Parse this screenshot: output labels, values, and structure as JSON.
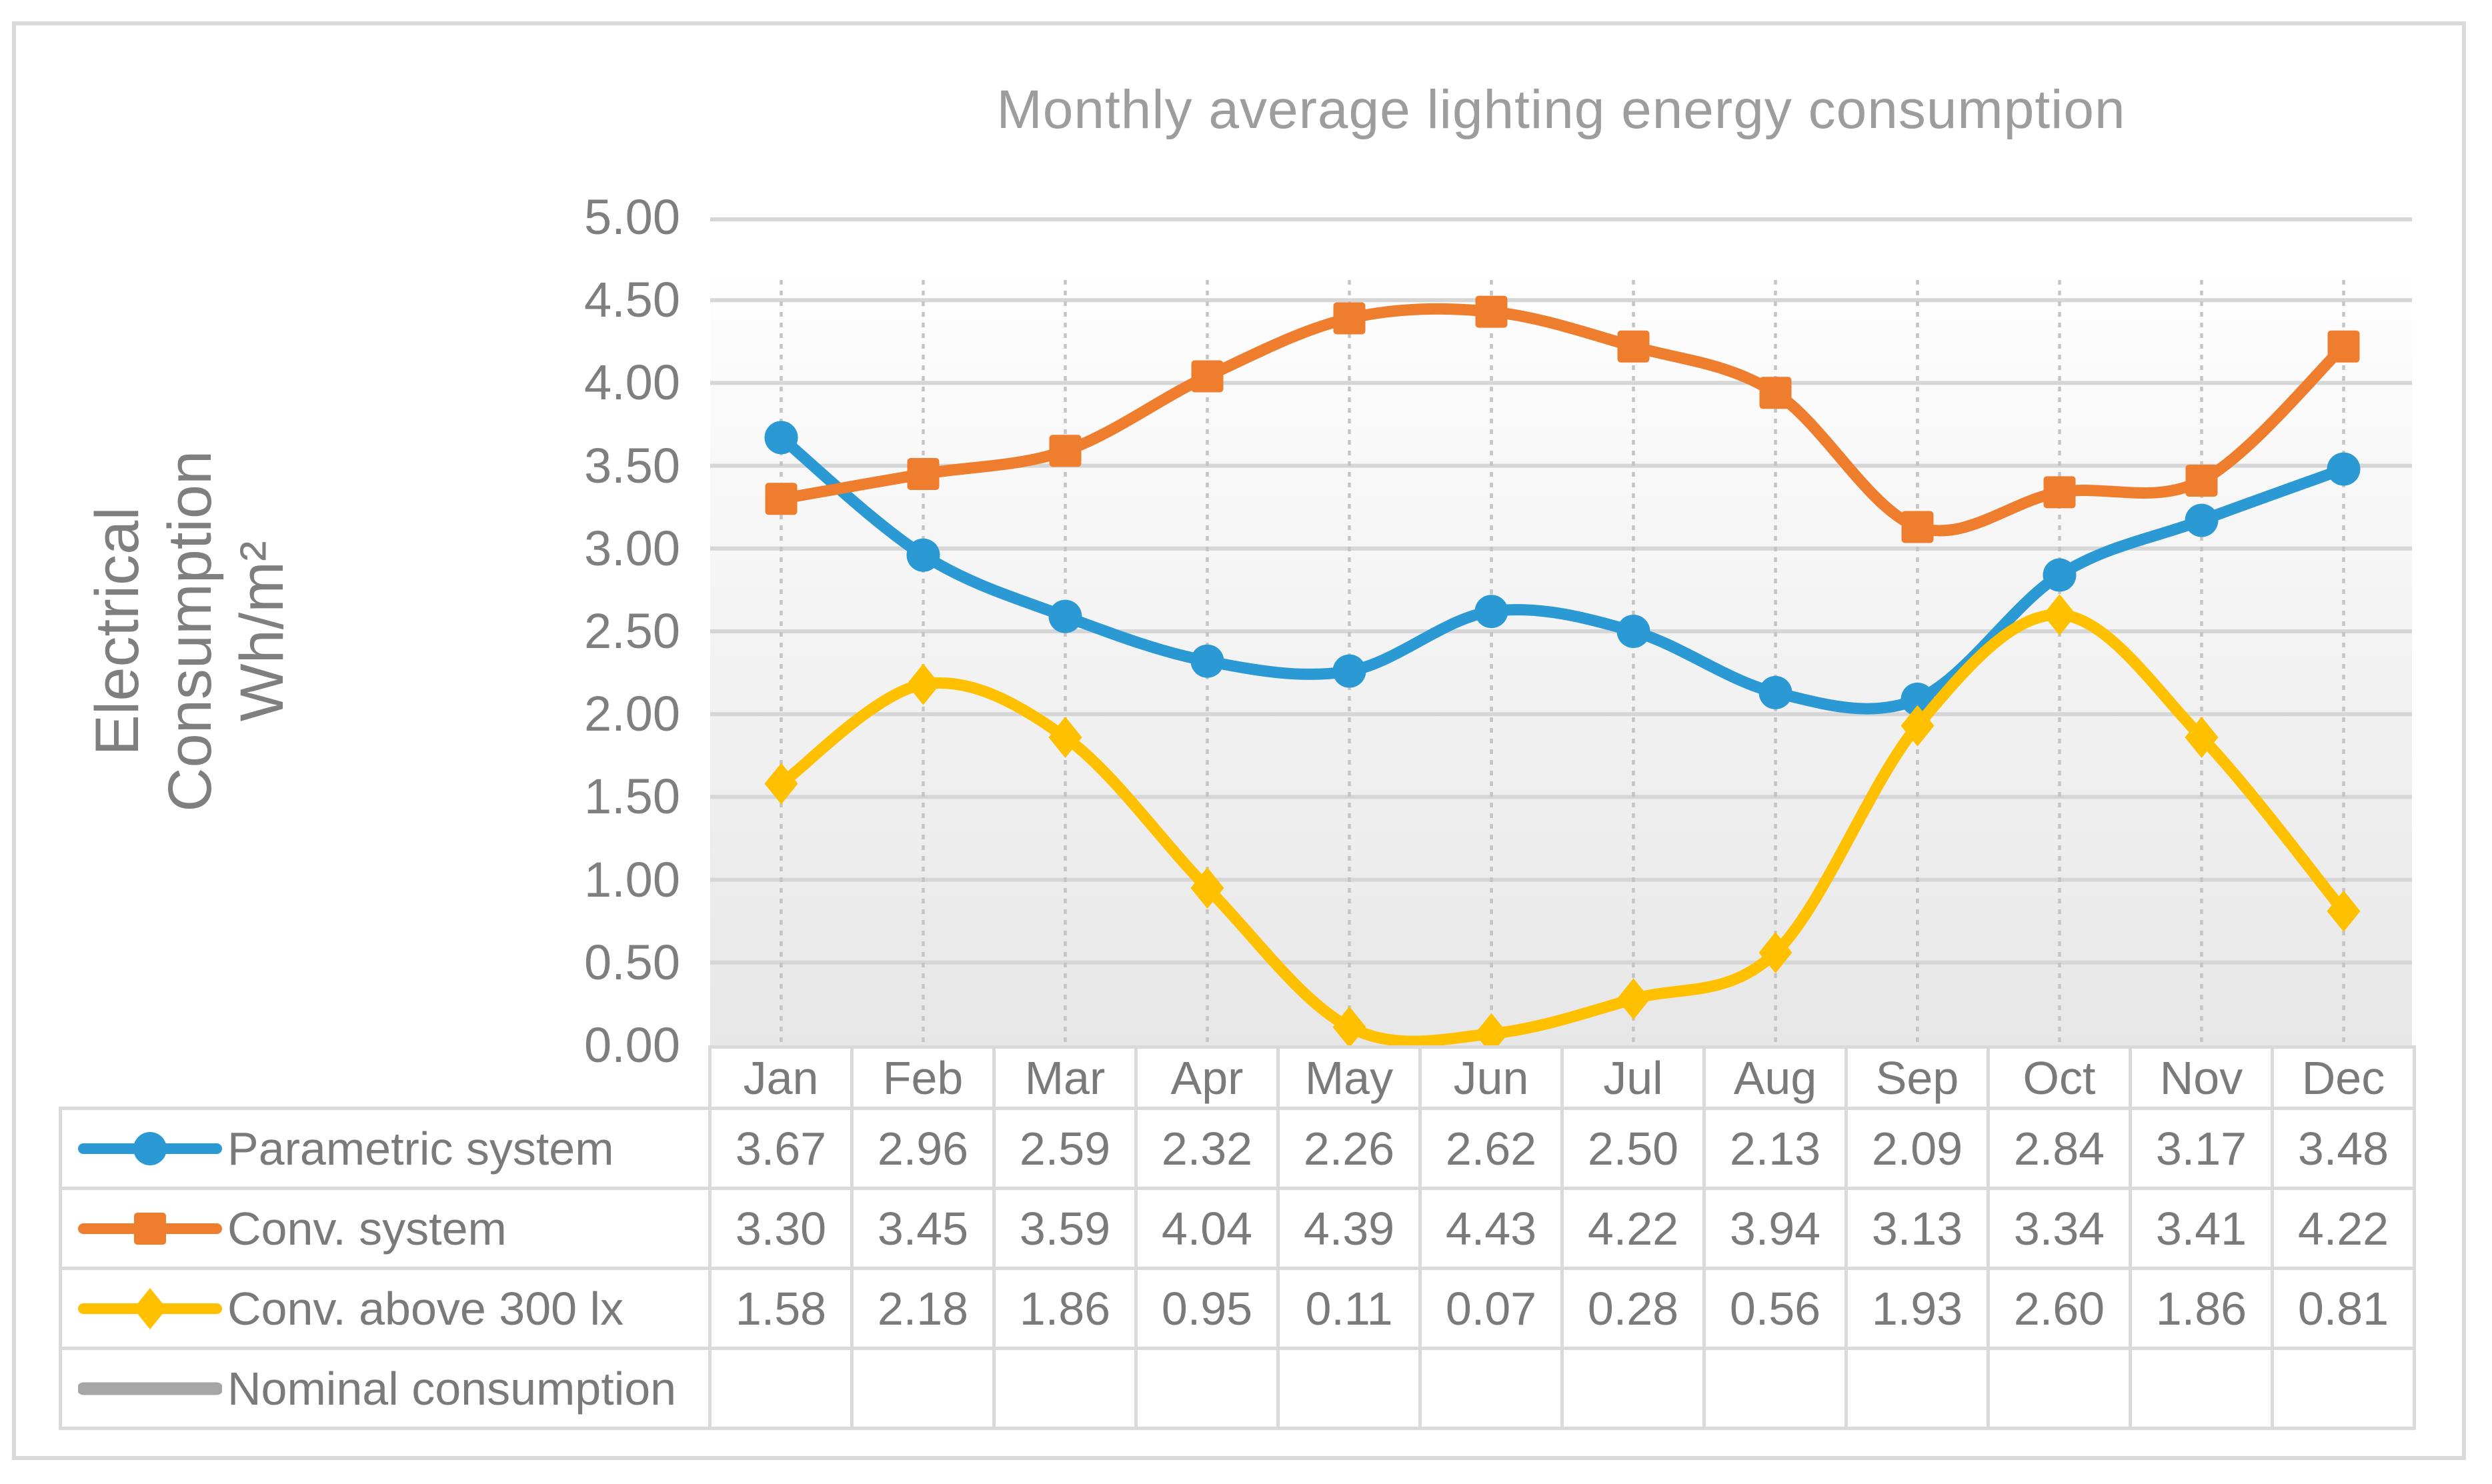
{
  "title": "Monthly average lighting energy consumption",
  "y_axis": {
    "title_lines": [
      "Electrical",
      "Consumption",
      "Wh/m²"
    ],
    "tick_labels": [
      "5.00",
      "4.50",
      "4.00",
      "3.50",
      "3.00",
      "2.50",
      "2.00",
      "1.50",
      "1.00",
      "0.50",
      "0.00"
    ],
    "min": 0,
    "max": 5,
    "step": 0.5
  },
  "months": [
    "Jan",
    "Feb",
    "Mar",
    "Apr",
    "May",
    "Jun",
    "Jul",
    "Aug",
    "Sep",
    "Oct",
    "Nov",
    "Dec"
  ],
  "chart_data": {
    "type": "line",
    "smooth": true,
    "grid": true,
    "legend_position": "table-left",
    "title": "Monthly average lighting energy consumption",
    "ylabel": "Electrical Consumption Wh/m²",
    "ylim": [
      0,
      5
    ],
    "categories": [
      "Jan",
      "Feb",
      "Mar",
      "Apr",
      "May",
      "Jun",
      "Jul",
      "Aug",
      "Sep",
      "Oct",
      "Nov",
      "Dec"
    ],
    "series": [
      {
        "name": "Parametric system",
        "marker": "circle",
        "color": "#2b99d4",
        "values": [
          3.67,
          2.96,
          2.59,
          2.32,
          2.26,
          2.62,
          2.5,
          2.13,
          2.09,
          2.84,
          3.17,
          3.48
        ]
      },
      {
        "name": "Conv. system",
        "marker": "square",
        "color": "#ee7d2e",
        "values": [
          3.3,
          3.45,
          3.59,
          4.04,
          4.39,
          4.43,
          4.22,
          3.94,
          3.13,
          3.34,
          3.41,
          4.22
        ]
      },
      {
        "name": "Conv. above 300 lx",
        "marker": "diamond",
        "color": "#ffc000",
        "values": [
          1.58,
          2.18,
          1.86,
          0.95,
          0.11,
          0.07,
          0.28,
          0.56,
          1.93,
          2.6,
          1.86,
          0.81
        ]
      },
      {
        "name": "Nominal consumption",
        "marker": "none",
        "color": "#a6a6a6",
        "values": []
      }
    ]
  },
  "colors": {
    "gridline": "#d6d6d6",
    "vertical_gridline": "#c4c4c4",
    "plot_gradient_top": "#ffffff",
    "plot_gradient_bottom": "#e7e7e7",
    "text_gray": "#7f7f7f",
    "title_gray": "#9d9d9d",
    "table_border": "#dadada",
    "frame_border": "#d9d9d9"
  }
}
